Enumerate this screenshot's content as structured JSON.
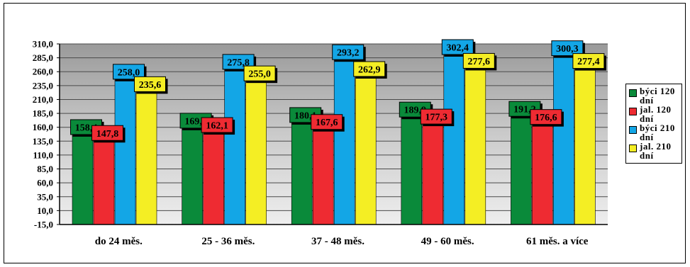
{
  "chart_data": {
    "type": "bar",
    "categories": [
      "do 24 měs.",
      "25 - 36 měs.",
      "37 - 48  měs.",
      "49 - 60 měs.",
      "61 měs. a více"
    ],
    "series": [
      {
        "name": "býci 120 dní",
        "color": "#0a8a3a",
        "values": [
          158.4,
          169.9,
          180.1,
          189.9,
          191.2
        ],
        "labels": [
          "158,4",
          "169,9",
          "180,1",
          "189,9",
          "191,2"
        ]
      },
      {
        "name": "jal. 120 dní",
        "color": "#ee2b32",
        "values": [
          147.8,
          162.1,
          167.6,
          177.3,
          176.6
        ],
        "labels": [
          "147,8",
          "162,1",
          "167,6",
          "177,3",
          "176,6"
        ]
      },
      {
        "name": "býci 210 dní",
        "color": "#13a6e6",
        "values": [
          258.0,
          275.8,
          293.2,
          302.4,
          300.3
        ],
        "labels": [
          "258,0",
          "275,8",
          "293,2",
          "302,4",
          "300,3"
        ]
      },
      {
        "name": "jal. 210 dní",
        "color": "#f4ee24",
        "values": [
          235.6,
          255.0,
          262.9,
          277.6,
          277.4
        ],
        "labels": [
          "235,6",
          "255,0",
          "262,9",
          "277,6",
          "277,4"
        ]
      }
    ],
    "y_ticks": [
      "310,0",
      "285,0",
      "260,0",
      "235,0",
      "210,0",
      "185,0",
      "160,0",
      "135,0",
      "110,0",
      "85,0",
      "60,0",
      "35,0",
      "10,0",
      "-15,0"
    ],
    "ylim": [
      -15,
      310
    ],
    "grid": true,
    "legend_position": "right",
    "title": "",
    "xlabel": "",
    "ylabel": "",
    "colors": {
      "plot_background": "#c8c8c8",
      "gridline": "#4a4a4a",
      "label_background": "#ffffff"
    }
  }
}
